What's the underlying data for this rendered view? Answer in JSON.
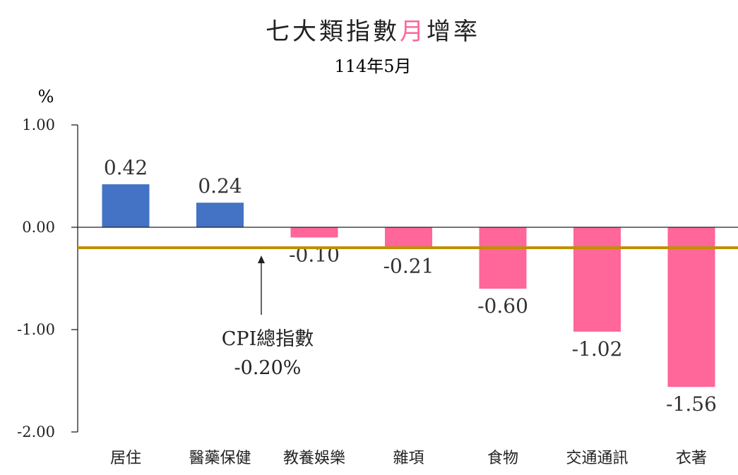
{
  "chart_data": {
    "type": "bar",
    "title_parts": [
      {
        "text": "七大類指數",
        "color": "#222222"
      },
      {
        "text": "月",
        "color": "#ff6699"
      },
      {
        "text": "增率",
        "color": "#222222"
      }
    ],
    "subtitle": "114年5月",
    "ylabel": "%",
    "ylim": [
      -2.0,
      1.0
    ],
    "yticks": [
      1.0,
      0.0,
      -1.0,
      -2.0
    ],
    "ytick_labels": [
      "1.00",
      "0.00",
      "-1.00",
      "-2.00"
    ],
    "categories": [
      "居住",
      "醫藥保健",
      "教養娛樂",
      "雜項",
      "食物",
      "交通通訊",
      "衣著"
    ],
    "values": [
      0.42,
      0.24,
      -0.1,
      -0.21,
      -0.6,
      -1.02,
      -1.56
    ],
    "value_labels": [
      "0.42",
      "0.24",
      "-0.10",
      "-0.21",
      "-0.60",
      "-1.02",
      "-1.56"
    ],
    "colors": {
      "positive": "#4472c4",
      "negative": "#ff6699",
      "reference": "#bf9000"
    },
    "reference_line": {
      "value": -0.2
    },
    "annotation": {
      "line1": "CPI總指數",
      "line2": "-0.20%"
    },
    "grid": false,
    "legend": "none"
  }
}
